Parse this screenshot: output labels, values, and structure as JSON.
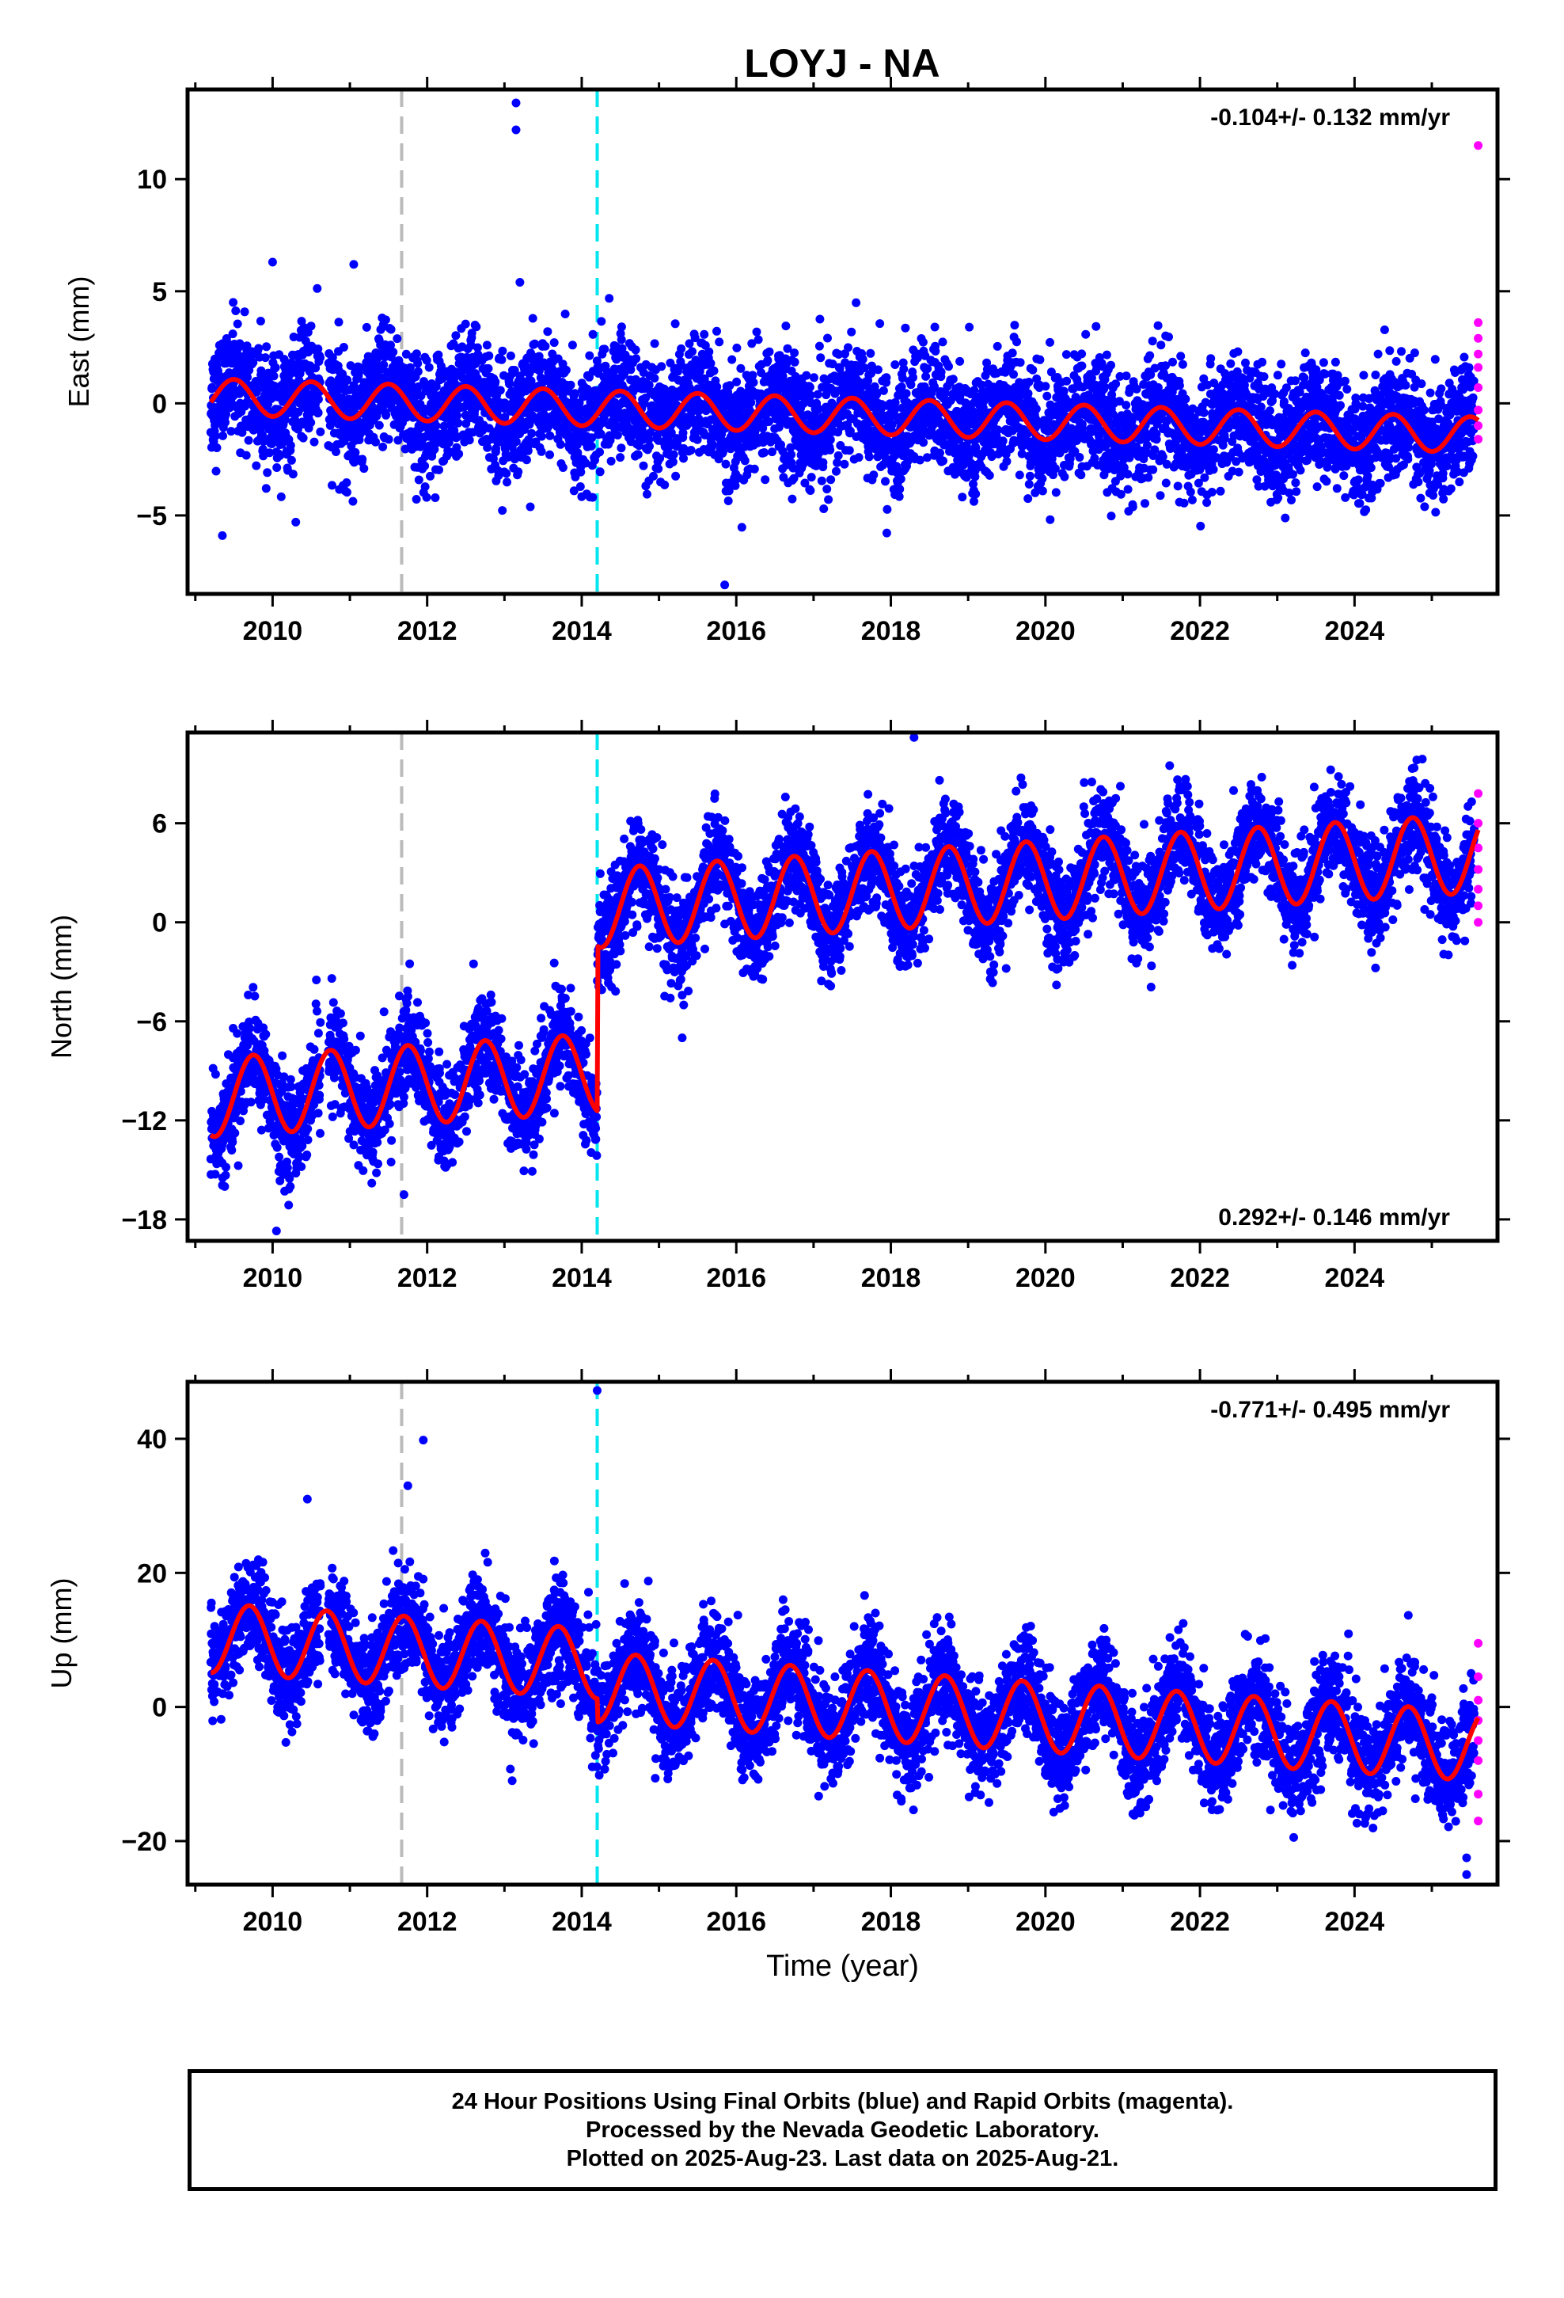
{
  "title": "LOYJ - NA",
  "colors": {
    "final": "#0000ff",
    "rapid": "#ff00ff",
    "model": "#ff0000",
    "event_gray": "#bbbbbb",
    "event_cyan": "#00e5ee"
  },
  "footer": {
    "line1": "24 Hour Positions Using Final Orbits (blue) and Rapid Orbits (magenta).",
    "line2": "Processed by the Nevada Geodetic Laboratory.",
    "line3": "Plotted on 2025-Aug-23. Last data on 2025-Aug-21."
  },
  "chart_data": [
    {
      "type": "scatter",
      "ylabel": "East (mm)",
      "rate": "-0.104+/- 0.132 mm/yr",
      "xlim": [
        2008.9,
        2025.85
      ],
      "ylim": [
        -8.5,
        14
      ],
      "yticks": [
        10,
        5,
        0,
        -5
      ],
      "ytick_labels": [
        "10",
        "5",
        "0",
        "−5"
      ],
      "xticks": [
        2010,
        2012,
        2014,
        2016,
        2018,
        2020,
        2022,
        2024
      ],
      "xtick_labels": [
        "2010",
        "2012",
        "2014",
        "2016",
        "2018",
        "2020",
        "2022",
        "2024"
      ],
      "event_lines": [
        2011.67,
        2014.2
      ],
      "model": {
        "offset": 0.3,
        "trend": -0.104,
        "amplitude": 0.8,
        "phase": 0.25,
        "steps": []
      },
      "scatter_sd": 1.3,
      "outliers": [
        [
          2013.15,
          13.4
        ],
        [
          2013.15,
          12.2
        ],
        [
          2009.35,
          -5.9
        ],
        [
          2010.3,
          -5.3
        ],
        [
          2015.85,
          -8.1
        ],
        [
          2010.0,
          6.3
        ],
        [
          2011.05,
          6.2
        ],
        [
          2013.2,
          5.4
        ]
      ],
      "rapid": [
        [
          2025.6,
          11.5
        ],
        [
          2025.6,
          3.6
        ],
        [
          2025.6,
          2.9
        ],
        [
          2025.6,
          2.2
        ],
        [
          2025.6,
          1.6
        ],
        [
          2025.6,
          0.7
        ],
        [
          2025.6,
          -0.3
        ],
        [
          2025.6,
          -1.0
        ],
        [
          2025.6,
          -1.6
        ]
      ]
    },
    {
      "type": "scatter",
      "ylabel": "North (mm)",
      "rate": "0.292+/- 0.146 mm/yr",
      "xlim": [
        2008.9,
        2025.85
      ],
      "ylim": [
        -19.3,
        11.5
      ],
      "yticks": [
        6,
        0,
        -6,
        -12,
        -18
      ],
      "ytick_labels": [
        "6",
        "0",
        "−6",
        "−12",
        "−18"
      ],
      "xticks": [
        2010,
        2012,
        2014,
        2016,
        2018,
        2020,
        2022,
        2024
      ],
      "xtick_labels": [
        "2010",
        "2012",
        "2014",
        "2016",
        "2018",
        "2020",
        "2022",
        "2024"
      ],
      "event_lines": [
        2011.67,
        2014.2
      ],
      "model": {
        "offset": -10.6,
        "trend": 0.292,
        "amplitude": 2.4,
        "phase": 0.5,
        "steps": [
          [
            2014.2,
            10.0
          ]
        ]
      },
      "scatter_sd": 1.5,
      "outliers": [
        [
          2018.3,
          11.2
        ],
        [
          2010.05,
          -18.7
        ],
        [
          2015.3,
          -7.0
        ],
        [
          2011.7,
          -16.5
        ]
      ],
      "rapid": [
        [
          2025.6,
          7.8
        ],
        [
          2025.6,
          6.0
        ],
        [
          2025.6,
          4.5
        ],
        [
          2025.6,
          3.2
        ],
        [
          2025.6,
          2.0
        ],
        [
          2025.6,
          1.0
        ],
        [
          2025.6,
          0.0
        ]
      ]
    },
    {
      "type": "scatter",
      "ylabel": "Up (mm)",
      "rate": "-0.771+/- 0.495 mm/yr",
      "xlim": [
        2008.9,
        2025.85
      ],
      "ylim": [
        -26.5,
        48.5
      ],
      "yticks": [
        40,
        20,
        0,
        -20
      ],
      "ytick_labels": [
        "40",
        "20",
        "0",
        "−20"
      ],
      "xticks": [
        2010,
        2012,
        2014,
        2016,
        2018,
        2020,
        2022,
        2024
      ],
      "xtick_labels": [
        "2010",
        "2012",
        "2014",
        "2016",
        "2018",
        "2020",
        "2022",
        "2024"
      ],
      "xlabel": "Time (year)",
      "event_lines": [
        2011.67,
        2014.2
      ],
      "model": {
        "offset": 10.3,
        "trend": -0.771,
        "amplitude": 5.2,
        "phase": 0.45,
        "steps": [
          [
            2014.2,
            -3.5
          ]
        ]
      },
      "scatter_sd": 3.8,
      "outliers": [
        [
          2014.2,
          47.2
        ],
        [
          2011.95,
          39.8
        ],
        [
          2010.45,
          31.0
        ],
        [
          2011.75,
          33.0
        ],
        [
          2013.1,
          -11.0
        ],
        [
          2025.45,
          -25.0
        ],
        [
          2025.45,
          -22.5
        ]
      ],
      "rapid": [
        [
          2025.6,
          9.5
        ],
        [
          2025.6,
          4.5
        ],
        [
          2025.6,
          1.0
        ],
        [
          2025.6,
          -2.0
        ],
        [
          2025.6,
          -5.0
        ],
        [
          2025.6,
          -8.0
        ],
        [
          2025.6,
          -13.0
        ],
        [
          2025.6,
          -17.0
        ]
      ]
    }
  ]
}
